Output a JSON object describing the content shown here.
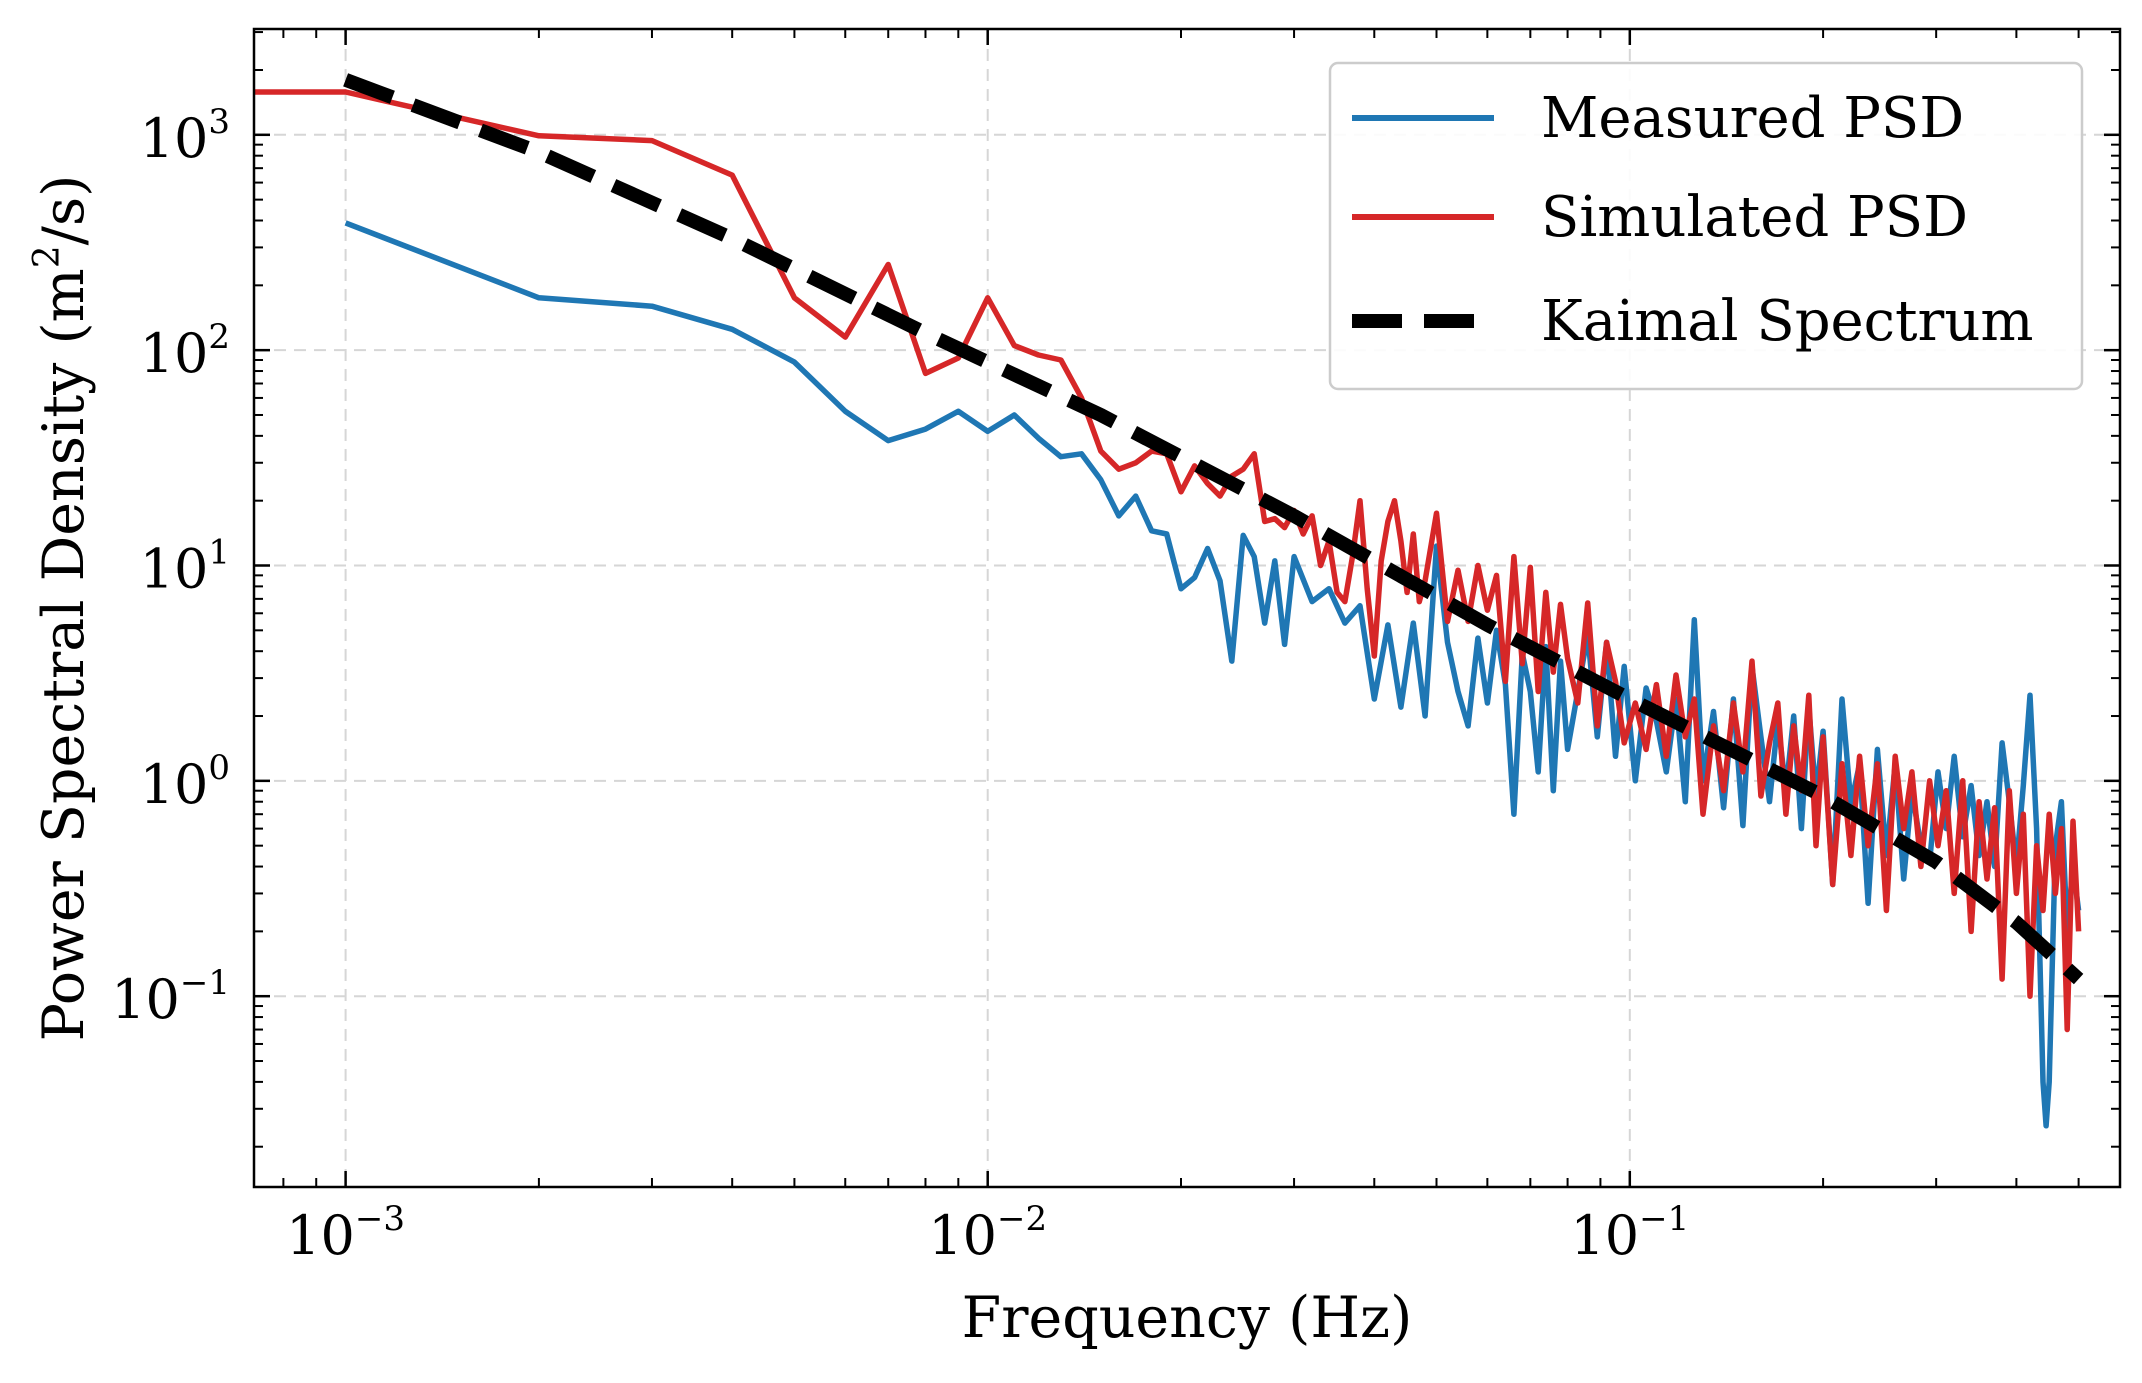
{
  "chart_data": {
    "type": "line",
    "scale": {
      "x": "log",
      "y": "log"
    },
    "xlim": [
      0.00072,
      0.58
    ],
    "ylim": [
      0.013,
      3100
    ],
    "xlabel": "Frequency (Hz)",
    "ylabel": {
      "main": "Power Spectral Density (m",
      "sup": "2",
      "tail": "/s)"
    },
    "x_ticks": [
      {
        "value": 0.001,
        "base": "10",
        "exp": "−3"
      },
      {
        "value": 0.01,
        "base": "10",
        "exp": "−2"
      },
      {
        "value": 0.1,
        "base": "10",
        "exp": "−1"
      }
    ],
    "y_ticks": [
      {
        "value": 0.1,
        "base": "10",
        "exp": "−1"
      },
      {
        "value": 1,
        "base": "10",
        "exp": "0"
      },
      {
        "value": 10,
        "base": "10",
        "exp": "1"
      },
      {
        "value": 100,
        "base": "10",
        "exp": "2"
      },
      {
        "value": 1000,
        "base": "10",
        "exp": "3"
      }
    ],
    "grid": true,
    "legend_position": "top-right",
    "series": [
      {
        "name": "Measured PSD",
        "color": "#1f77b4",
        "style": "solid",
        "points": [
          [
            0.001,
            390
          ],
          [
            0.002,
            175
          ],
          [
            0.003,
            160
          ],
          [
            0.004,
            125
          ],
          [
            0.005,
            88
          ],
          [
            0.006,
            52
          ],
          [
            0.007,
            38
          ],
          [
            0.008,
            43
          ],
          [
            0.009,
            52
          ],
          [
            0.01,
            42
          ],
          [
            0.011,
            50
          ],
          [
            0.012,
            39
          ],
          [
            0.013,
            32
          ],
          [
            0.014,
            33
          ],
          [
            0.015,
            25
          ],
          [
            0.016,
            17
          ],
          [
            0.017,
            21
          ],
          [
            0.018,
            14.5
          ],
          [
            0.019,
            14
          ],
          [
            0.02,
            7.8
          ],
          [
            0.021,
            8.8
          ],
          [
            0.022,
            12
          ],
          [
            0.023,
            8.5
          ],
          [
            0.024,
            3.6
          ],
          [
            0.025,
            13.8
          ],
          [
            0.026,
            11
          ],
          [
            0.027,
            5.4
          ],
          [
            0.028,
            10.5
          ],
          [
            0.029,
            4.3
          ],
          [
            0.03,
            11
          ],
          [
            0.032,
            6.8
          ],
          [
            0.034,
            7.8
          ],
          [
            0.036,
            5.4
          ],
          [
            0.038,
            6.5
          ],
          [
            0.04,
            2.4
          ],
          [
            0.042,
            5.3
          ],
          [
            0.044,
            2.2
          ],
          [
            0.046,
            5.4
          ],
          [
            0.048,
            2.0
          ],
          [
            0.05,
            12.3
          ],
          [
            0.052,
            4.4
          ],
          [
            0.054,
            2.6
          ],
          [
            0.056,
            1.8
          ],
          [
            0.058,
            4.6
          ],
          [
            0.06,
            2.3
          ],
          [
            0.062,
            5.0
          ],
          [
            0.064,
            2.8
          ],
          [
            0.066,
            0.7
          ],
          [
            0.068,
            3.9
          ],
          [
            0.07,
            2.6
          ],
          [
            0.072,
            1.1
          ],
          [
            0.074,
            4.2
          ],
          [
            0.076,
            0.9
          ],
          [
            0.078,
            3.6
          ],
          [
            0.08,
            1.4
          ],
          [
            0.083,
            2.6
          ],
          [
            0.086,
            4.8
          ],
          [
            0.089,
            1.6
          ],
          [
            0.092,
            4.4
          ],
          [
            0.095,
            1.3
          ],
          [
            0.098,
            3.4
          ],
          [
            0.102,
            1.0
          ],
          [
            0.106,
            2.7
          ],
          [
            0.11,
            1.9
          ],
          [
            0.114,
            1.1
          ],
          [
            0.118,
            2.4
          ],
          [
            0.122,
            0.8
          ],
          [
            0.126,
            5.6
          ],
          [
            0.13,
            1.0
          ],
          [
            0.135,
            2.1
          ],
          [
            0.14,
            0.75
          ],
          [
            0.145,
            2.4
          ],
          [
            0.15,
            0.62
          ],
          [
            0.155,
            3.4
          ],
          [
            0.16,
            1.6
          ],
          [
            0.165,
            0.8
          ],
          [
            0.17,
            1.9
          ],
          [
            0.175,
            0.9
          ],
          [
            0.18,
            2.0
          ],
          [
            0.185,
            0.6
          ],
          [
            0.19,
            2.2
          ],
          [
            0.195,
            0.85
          ],
          [
            0.2,
            1.7
          ],
          [
            0.207,
            0.33
          ],
          [
            0.214,
            2.4
          ],
          [
            0.221,
            0.78
          ],
          [
            0.228,
            1.2
          ],
          [
            0.235,
            0.27
          ],
          [
            0.243,
            1.4
          ],
          [
            0.251,
            0.45
          ],
          [
            0.259,
            1.2
          ],
          [
            0.267,
            0.35
          ],
          [
            0.275,
            0.9
          ],
          [
            0.284,
            0.5
          ],
          [
            0.293,
            0.42
          ],
          [
            0.302,
            1.1
          ],
          [
            0.311,
            0.6
          ],
          [
            0.32,
            1.3
          ],
          [
            0.33,
            0.55
          ],
          [
            0.34,
            0.95
          ],
          [
            0.35,
            0.45
          ],
          [
            0.36,
            0.8
          ],
          [
            0.37,
            0.4
          ],
          [
            0.38,
            1.5
          ],
          [
            0.39,
            0.8
          ],
          [
            0.4,
            0.4
          ],
          [
            0.41,
            0.95
          ],
          [
            0.42,
            2.5
          ],
          [
            0.43,
            0.6
          ],
          [
            0.44,
            0.04
          ],
          [
            0.445,
            0.025
          ],
          [
            0.45,
            0.04
          ],
          [
            0.46,
            0.5
          ],
          [
            0.47,
            0.8
          ],
          [
            0.48,
            0.2
          ],
          [
            0.49,
            0.4
          ],
          [
            0.5,
            0.25
          ]
        ]
      },
      {
        "name": "Simulated PSD",
        "color": "#d62728",
        "style": "solid",
        "points": [
          [
            0.00072,
            1580
          ],
          [
            0.001,
            1580
          ],
          [
            0.002,
            990
          ],
          [
            0.003,
            940
          ],
          [
            0.004,
            650
          ],
          [
            0.005,
            175
          ],
          [
            0.006,
            115
          ],
          [
            0.007,
            250
          ],
          [
            0.008,
            78
          ],
          [
            0.009,
            92
          ],
          [
            0.01,
            175
          ],
          [
            0.011,
            105
          ],
          [
            0.012,
            95
          ],
          [
            0.013,
            90
          ],
          [
            0.014,
            60
          ],
          [
            0.015,
            34
          ],
          [
            0.016,
            28
          ],
          [
            0.017,
            30
          ],
          [
            0.018,
            34
          ],
          [
            0.019,
            33
          ],
          [
            0.02,
            22
          ],
          [
            0.021,
            29
          ],
          [
            0.022,
            24
          ],
          [
            0.023,
            21
          ],
          [
            0.024,
            26
          ],
          [
            0.025,
            28
          ],
          [
            0.026,
            33
          ],
          [
            0.027,
            16
          ],
          [
            0.028,
            16.5
          ],
          [
            0.029,
            15
          ],
          [
            0.03,
            18
          ],
          [
            0.031,
            14
          ],
          [
            0.032,
            17
          ],
          [
            0.033,
            10
          ],
          [
            0.034,
            13
          ],
          [
            0.035,
            7.5
          ],
          [
            0.036,
            6.8
          ],
          [
            0.037,
            11
          ],
          [
            0.038,
            20
          ],
          [
            0.039,
            7.8
          ],
          [
            0.04,
            3.8
          ],
          [
            0.041,
            10.5
          ],
          [
            0.042,
            16
          ],
          [
            0.043,
            20
          ],
          [
            0.044,
            13
          ],
          [
            0.045,
            7.5
          ],
          [
            0.046,
            14
          ],
          [
            0.047,
            6.8
          ],
          [
            0.048,
            8.5
          ],
          [
            0.05,
            17.5
          ],
          [
            0.052,
            5.5
          ],
          [
            0.054,
            9.5
          ],
          [
            0.056,
            5.5
          ],
          [
            0.058,
            10
          ],
          [
            0.06,
            6.2
          ],
          [
            0.062,
            9.0
          ],
          [
            0.064,
            2.9
          ],
          [
            0.066,
            11
          ],
          [
            0.068,
            3.5
          ],
          [
            0.07,
            9.8
          ],
          [
            0.072,
            2.6
          ],
          [
            0.074,
            7.5
          ],
          [
            0.076,
            3.2
          ],
          [
            0.078,
            6.6
          ],
          [
            0.08,
            3.7
          ],
          [
            0.083,
            2.3
          ],
          [
            0.086,
            6.7
          ],
          [
            0.089,
            1.8
          ],
          [
            0.092,
            4.4
          ],
          [
            0.095,
            2.9
          ],
          [
            0.098,
            1.5
          ],
          [
            0.102,
            2.3
          ],
          [
            0.106,
            1.4
          ],
          [
            0.11,
            2.8
          ],
          [
            0.114,
            1.3
          ],
          [
            0.118,
            3.1
          ],
          [
            0.122,
            1.6
          ],
          [
            0.126,
            2.4
          ],
          [
            0.13,
            0.7
          ],
          [
            0.135,
            1.8
          ],
          [
            0.14,
            0.9
          ],
          [
            0.145,
            2.3
          ],
          [
            0.15,
            1.1
          ],
          [
            0.155,
            3.6
          ],
          [
            0.16,
            0.85
          ],
          [
            0.165,
            1.5
          ],
          [
            0.17,
            2.3
          ],
          [
            0.175,
            0.7
          ],
          [
            0.18,
            1.8
          ],
          [
            0.185,
            0.9
          ],
          [
            0.19,
            2.5
          ],
          [
            0.195,
            0.5
          ],
          [
            0.2,
            1.6
          ],
          [
            0.207,
            0.33
          ],
          [
            0.214,
            1.2
          ],
          [
            0.221,
            0.45
          ],
          [
            0.228,
            1.3
          ],
          [
            0.235,
            0.5
          ],
          [
            0.243,
            1.2
          ],
          [
            0.251,
            0.25
          ],
          [
            0.259,
            1.3
          ],
          [
            0.267,
            0.6
          ],
          [
            0.275,
            1.1
          ],
          [
            0.284,
            0.4
          ],
          [
            0.293,
            1.0
          ],
          [
            0.302,
            0.5
          ],
          [
            0.311,
            0.9
          ],
          [
            0.32,
            0.3
          ],
          [
            0.33,
            1.0
          ],
          [
            0.34,
            0.2
          ],
          [
            0.35,
            0.8
          ],
          [
            0.36,
            0.35
          ],
          [
            0.37,
            0.75
          ],
          [
            0.38,
            0.12
          ],
          [
            0.39,
            0.9
          ],
          [
            0.4,
            0.3
          ],
          [
            0.41,
            0.7
          ],
          [
            0.42,
            0.1
          ],
          [
            0.43,
            0.5
          ],
          [
            0.44,
            0.25
          ],
          [
            0.45,
            0.7
          ],
          [
            0.46,
            0.3
          ],
          [
            0.47,
            0.6
          ],
          [
            0.48,
            0.07
          ],
          [
            0.49,
            0.65
          ],
          [
            0.5,
            0.2
          ]
        ]
      },
      {
        "name": "Kaimal Spectrum",
        "color": "#000000",
        "style": "dashed",
        "points": [
          [
            0.001,
            1800
          ],
          [
            0.002,
            830
          ],
          [
            0.004,
            330
          ],
          [
            0.008,
            120
          ],
          [
            0.015,
            50
          ],
          [
            0.03,
            17
          ],
          [
            0.06,
            5.3
          ],
          [
            0.1,
            2.4
          ],
          [
            0.2,
            0.85
          ],
          [
            0.3,
            0.42
          ],
          [
            0.4,
            0.22
          ],
          [
            0.5,
            0.12
          ]
        ]
      }
    ]
  }
}
